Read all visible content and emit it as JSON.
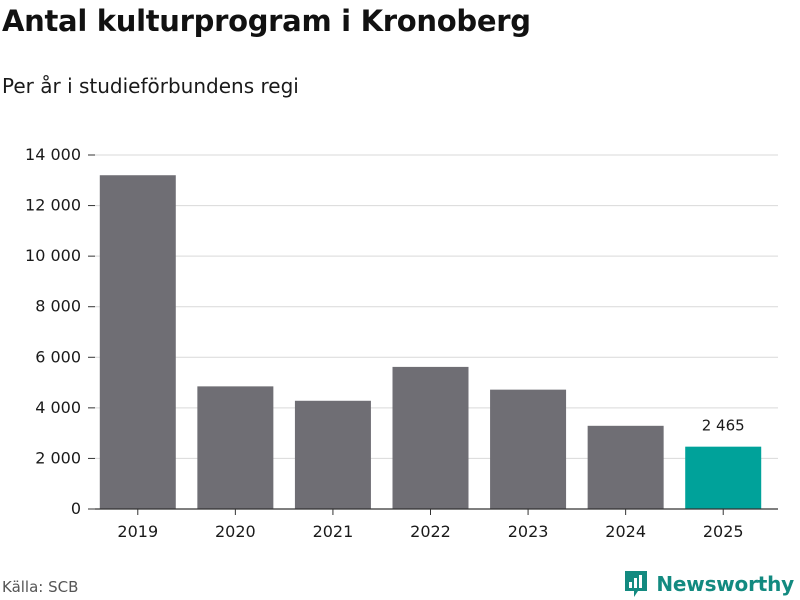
{
  "header": {
    "title": "Antal kulturprogram i Kronoberg",
    "subtitle": "Per år i studieförbundens regi"
  },
  "footer": {
    "source": "Källa: SCB",
    "brand": "Newsworthy"
  },
  "colors": {
    "bar": "#6f6e74",
    "highlight": "#00a29a",
    "grid": "#d9d9d9",
    "brand": "#138a80"
  },
  "chart_data": {
    "type": "bar",
    "title": "Antal kulturprogram i Kronoberg",
    "subtitle": "Per år i studieförbundens regi",
    "xlabel": "",
    "ylabel": "",
    "categories": [
      "2019",
      "2020",
      "2021",
      "2022",
      "2023",
      "2024",
      "2025"
    ],
    "values": [
      13200,
      4850,
      4280,
      5620,
      4720,
      3290,
      2465
    ],
    "highlight_index": 6,
    "data_labels": [
      {
        "index": 6,
        "text": "2 465"
      }
    ],
    "ylim": [
      0,
      14000
    ],
    "yticks": [
      0,
      2000,
      4000,
      6000,
      8000,
      10000,
      12000,
      14000
    ],
    "ytick_labels": [
      "0",
      "2 000",
      "4 000",
      "6 000",
      "8 000",
      "10 000",
      "12 000",
      "14 000"
    ],
    "grid": true
  }
}
